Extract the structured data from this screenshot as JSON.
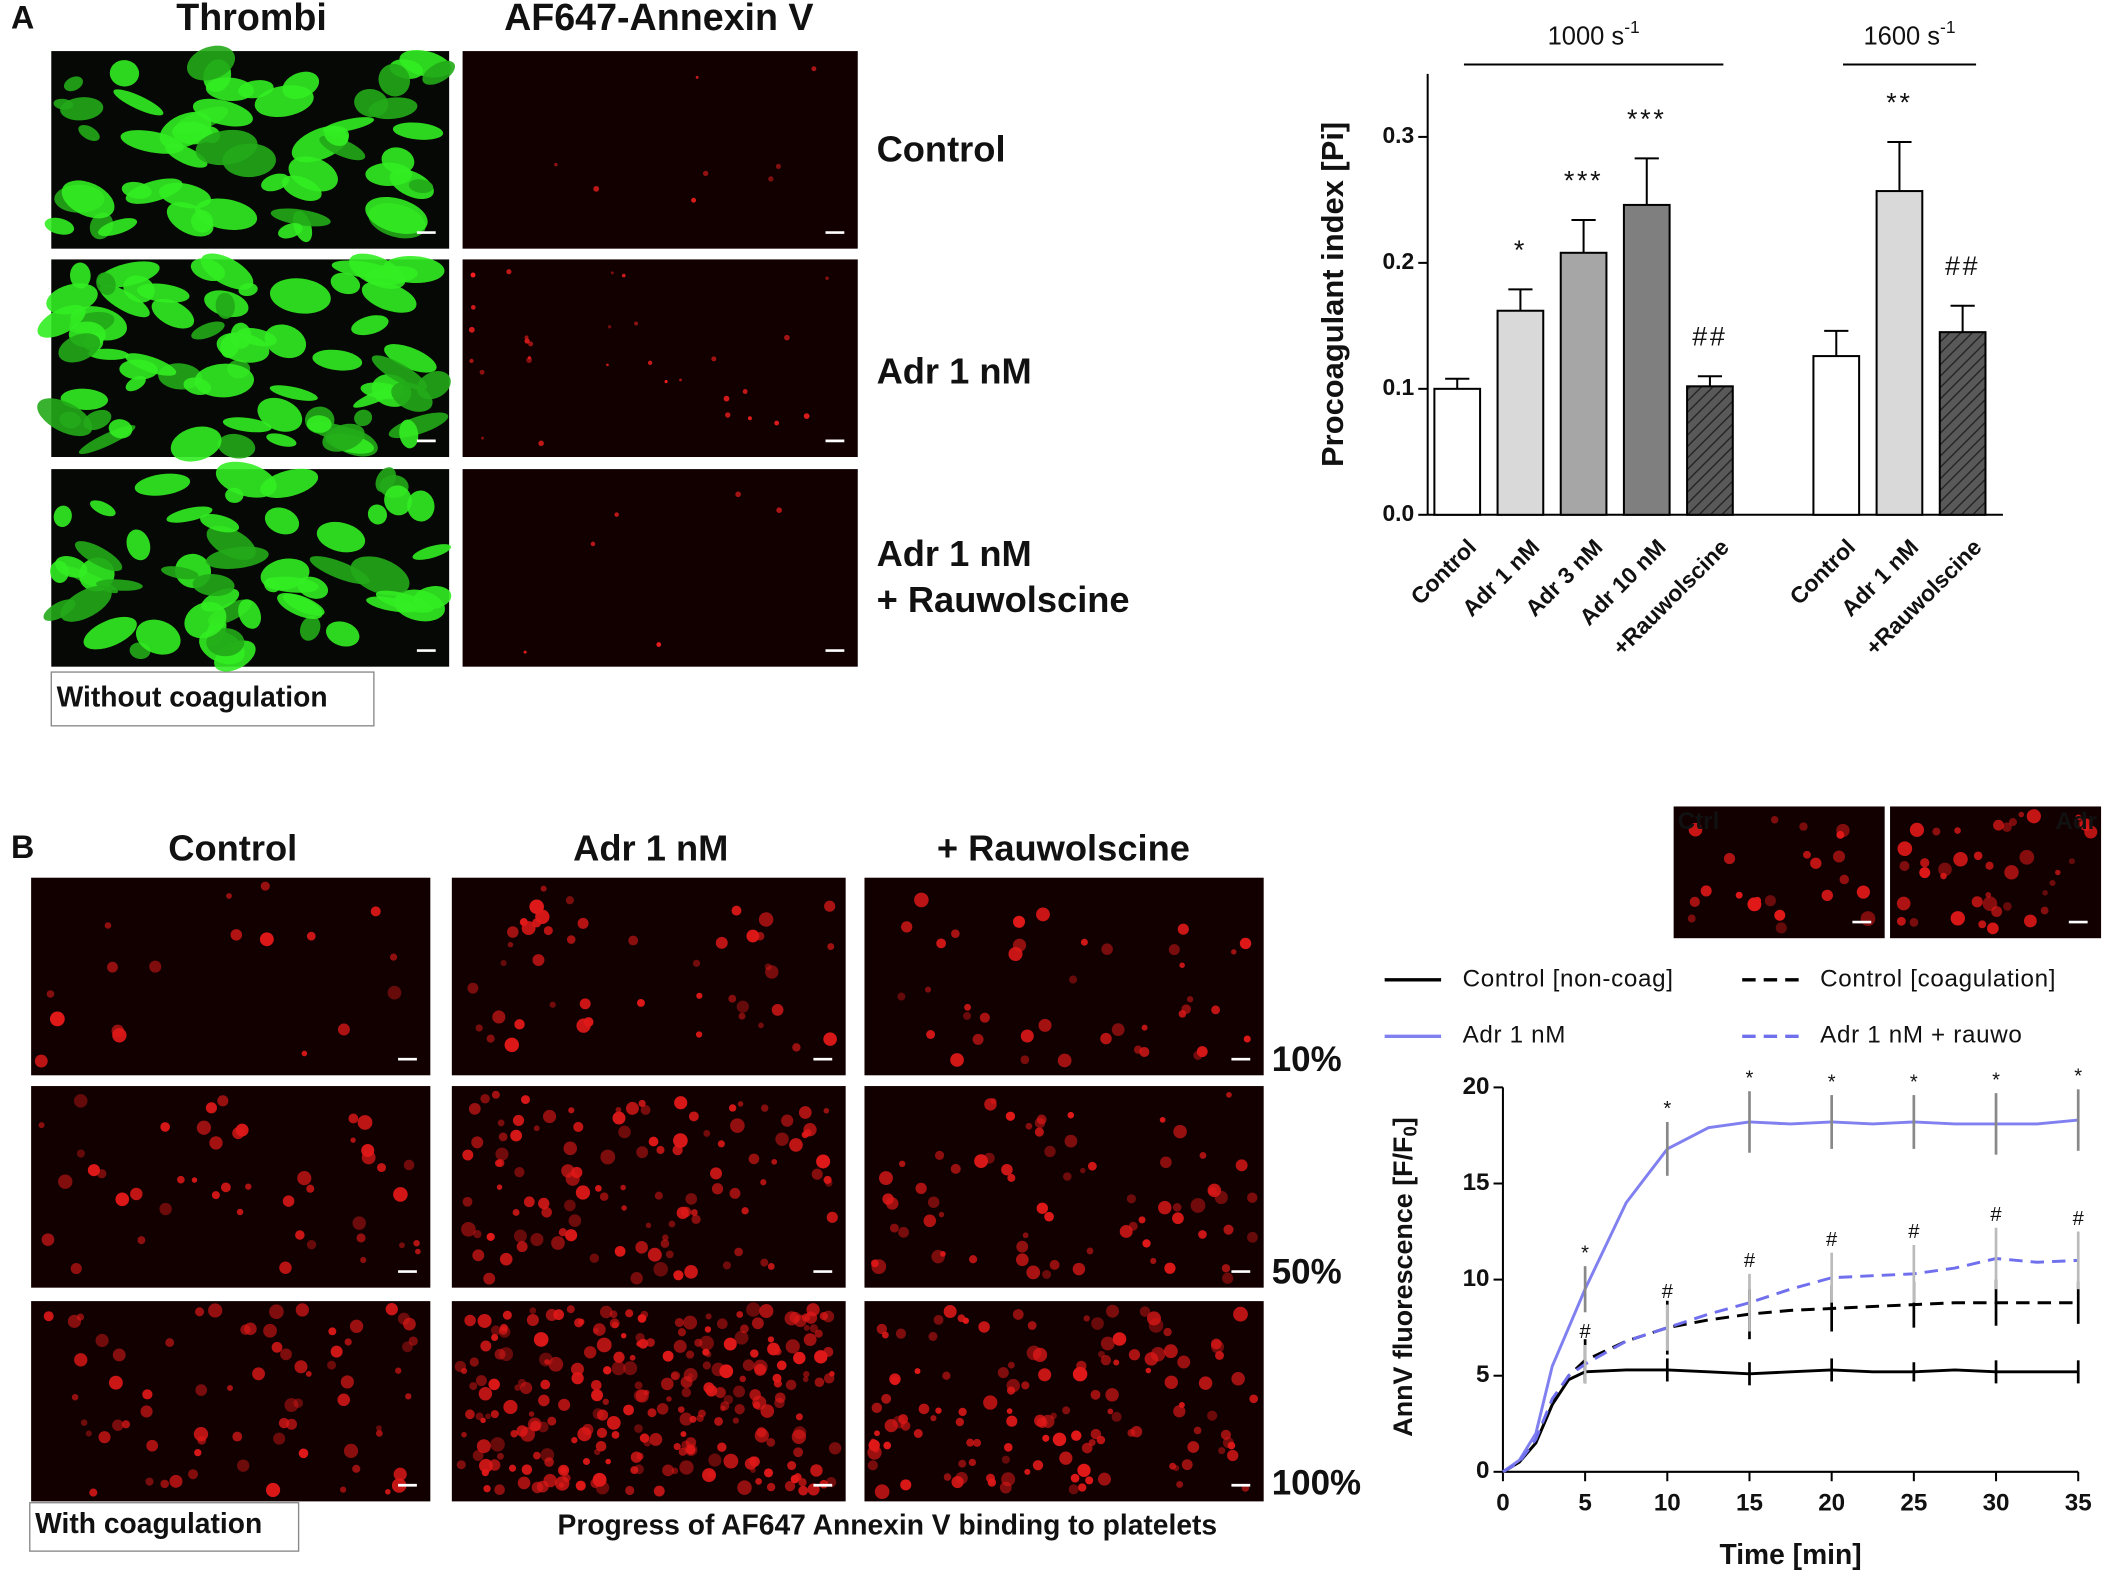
{
  "panel_a": {
    "label": "A",
    "col_titles": [
      "Thrombi",
      "AF647-Annexin V"
    ],
    "row_labels": [
      [
        "Control"
      ],
      [
        "Adr 1 nM"
      ],
      [
        "Adr 1 nM",
        "+ Rauwolscine"
      ]
    ],
    "box_label": "Without coagulation"
  },
  "panel_b": {
    "label": "B",
    "col_titles": [
      "Control",
      "Adr 1 nM",
      "+ Rauwolscine"
    ],
    "row_labels": [
      "10%",
      "50%",
      "100%"
    ],
    "box_label": "With coagulation",
    "caption": "Progress of AF647 Annexin V binding to platelets",
    "inset_labels": [
      "Ctrl",
      "Adr"
    ]
  },
  "chart_data": [
    {
      "type": "bar",
      "ylabel": "Procoagulant index [Pi]",
      "groups": [
        {
          "label": "1000 s",
          "sup": "-1"
        },
        {
          "label": "1600 s",
          "sup": "-1"
        }
      ],
      "categories": [
        "Control",
        "Adr 1 nM",
        "Adr 3 nM",
        "Adr 10 nM",
        "+Rauwolscine",
        null,
        "Control",
        "Adr 1 nM",
        "+Rauwolscine"
      ],
      "values": [
        0.1,
        0.162,
        0.208,
        0.246,
        0.102,
        null,
        0.126,
        0.257,
        0.145
      ],
      "errors": [
        0.008,
        0.017,
        0.026,
        0.037,
        0.008,
        null,
        0.02,
        0.039,
        0.021
      ],
      "annotations": [
        null,
        "*",
        "***",
        "***",
        "##",
        null,
        null,
        "**",
        "##"
      ],
      "colors": [
        "#ffffff",
        "#d9d9d9",
        "#a6a6a6",
        "#7f7f7f",
        "#595959",
        null,
        "#ffffff",
        "#d9d9d9",
        "#595959"
      ],
      "hatched": [
        false,
        false,
        false,
        false,
        true,
        null,
        false,
        false,
        true
      ],
      "ylim": [
        0,
        0.35
      ],
      "yticks": [
        {
          "value": 0,
          "label": "0.0"
        },
        0.1,
        0.2,
        0.3
      ]
    },
    {
      "type": "line",
      "ylabel": [
        "AnnV fluorescence [F/F",
        "0",
        "]"
      ],
      "xlabel": "Time [min]",
      "x": [
        0,
        1,
        2,
        3,
        4,
        5,
        7.5,
        10,
        12.5,
        15,
        17.5,
        20,
        22.5,
        25,
        27.5,
        30,
        32.5,
        35
      ],
      "series": [
        {
          "name": "Control [non-coag]",
          "color": "#000000",
          "dash": false,
          "error_color": "#000000",
          "values": [
            0,
            0.5,
            1.5,
            3.5,
            4.8,
            5.2,
            5.3,
            5.3,
            5.2,
            5.1,
            5.2,
            5.3,
            5.2,
            5.2,
            5.3,
            5.2,
            5.2,
            5.2
          ],
          "errors": [
            null,
            null,
            null,
            null,
            null,
            0.6,
            null,
            0.6,
            null,
            0.6,
            null,
            0.6,
            null,
            0.5,
            null,
            0.6,
            null,
            0.6
          ],
          "significance": [
            null,
            null,
            null,
            null,
            null,
            null,
            null,
            null,
            null,
            null,
            null,
            null,
            null,
            null,
            null,
            null,
            null,
            null
          ]
        },
        {
          "name": "Control [coagulation]",
          "color": "#000000",
          "dash": true,
          "error_color": "#000000",
          "values": [
            0,
            0.5,
            1.6,
            3.7,
            5.0,
            5.8,
            6.8,
            7.5,
            7.9,
            8.2,
            8.4,
            8.5,
            8.6,
            8.7,
            8.8,
            8.8,
            8.8,
            8.8
          ],
          "errors": [
            null,
            null,
            null,
            null,
            null,
            1.1,
            null,
            1.4,
            null,
            1.3,
            null,
            1.2,
            null,
            1.2,
            null,
            1.2,
            null,
            1.1
          ],
          "significance": [
            null,
            null,
            null,
            null,
            null,
            null,
            null,
            null,
            null,
            null,
            null,
            null,
            null,
            null,
            null,
            null,
            null,
            null
          ]
        },
        {
          "name": "Adr 1 nM",
          "color": "#8080f0",
          "dash": false,
          "error_color": "#888888",
          "values": [
            0,
            0.6,
            2.0,
            5.5,
            7.5,
            9.5,
            14.0,
            16.8,
            17.9,
            18.2,
            18.1,
            18.2,
            18.1,
            18.2,
            18.1,
            18.1,
            18.1,
            18.3
          ],
          "errors": [
            null,
            null,
            null,
            null,
            null,
            1.2,
            null,
            1.4,
            null,
            1.6,
            null,
            1.4,
            null,
            1.4,
            null,
            1.6,
            null,
            1.6
          ],
          "significance": [
            null,
            null,
            null,
            null,
            null,
            "*",
            null,
            "*",
            null,
            "*",
            null,
            "*",
            null,
            "*",
            null,
            "*",
            null,
            "*"
          ]
        },
        {
          "name": "Adr 1 nM + rauwo",
          "color": "#7070ee",
          "dash": true,
          "error_color": "#bbbbbb",
          "values": [
            0,
            0.5,
            1.7,
            3.8,
            5.0,
            5.6,
            6.8,
            7.5,
            8.2,
            8.8,
            9.5,
            10.1,
            10.2,
            10.3,
            10.6,
            11.1,
            10.9,
            11.0
          ],
          "errors": [
            null,
            null,
            null,
            null,
            null,
            1.0,
            null,
            1.2,
            null,
            1.5,
            null,
            1.3,
            null,
            1.5,
            null,
            1.6,
            null,
            1.5
          ],
          "significance": [
            null,
            null,
            null,
            null,
            null,
            "#",
            null,
            "#",
            null,
            "#",
            null,
            "#",
            null,
            "#",
            null,
            "#",
            null,
            "#"
          ]
        }
      ],
      "xlim": [
        0,
        35
      ],
      "xticks": [
        0,
        5,
        10,
        15,
        20,
        25,
        30,
        35
      ],
      "ylim": [
        0,
        20
      ],
      "yticks": [
        0,
        5,
        10,
        15,
        20
      ]
    }
  ]
}
